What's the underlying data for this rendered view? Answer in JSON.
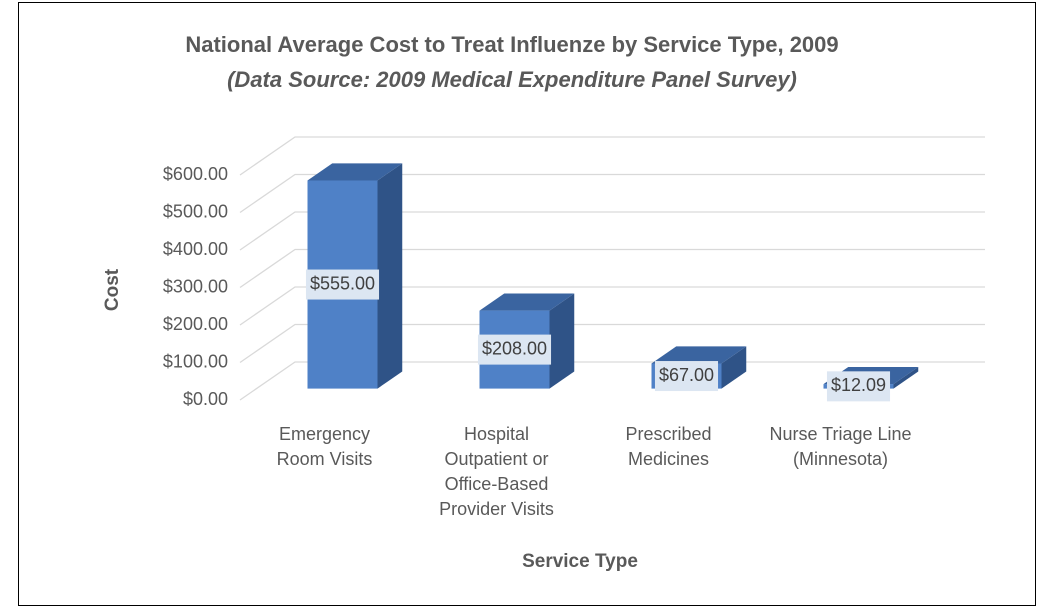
{
  "chart_data": {
    "type": "bar",
    "title": "National Average Cost to Treat Influenze by Service Type, 2009",
    "subtitle": "(Data Source: 2009 Medical Expenditure Panel Survey)",
    "x_label": "Service Type",
    "y_label": "Cost",
    "categories": [
      "Emergency Room Visits",
      "Hospital Outpatient or Office-Based Provider Visits",
      "Prescribed Medicines",
      "Nurse Triage Line (Minnesota)"
    ],
    "values": [
      555,
      208,
      67,
      12.09
    ],
    "value_labels": [
      "$555.00",
      "$208.00",
      "$67.00",
      "$12.09"
    ],
    "color": "#4f81c7",
    "ylim": [
      0,
      600
    ],
    "yticks": [
      {
        "value": 0,
        "label": "$0.00"
      },
      {
        "value": 100,
        "label": "$100.00"
      },
      {
        "value": 200,
        "label": "$200.00"
      },
      {
        "value": 300,
        "label": "$300.00"
      },
      {
        "value": 400,
        "label": "$400.00"
      },
      {
        "value": 500,
        "label": "$500.00"
      },
      {
        "value": 600,
        "label": "$600.00"
      }
    ],
    "grid": true
  }
}
